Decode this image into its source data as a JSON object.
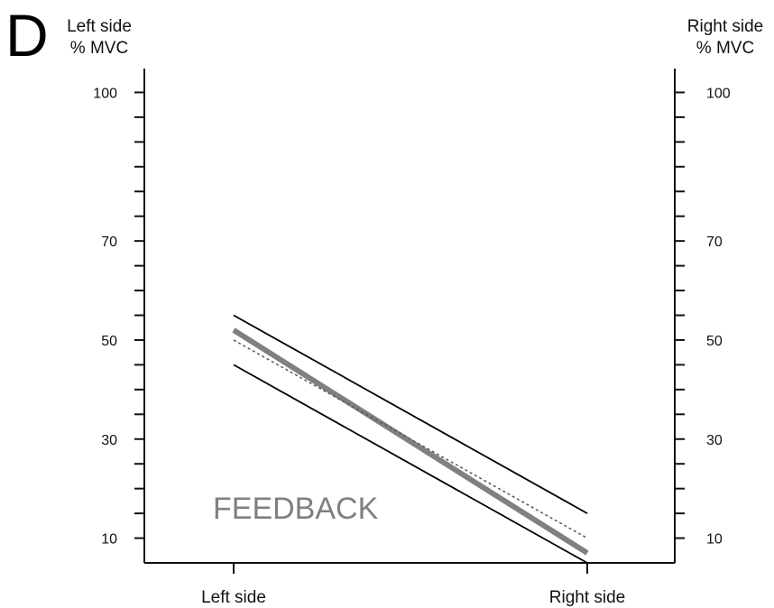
{
  "panel_label": "D",
  "chart_data": {
    "type": "line",
    "categories": [
      "Left side",
      "Right side"
    ],
    "left_axis": {
      "title_line1": "Left side",
      "title_line2": "% MVC",
      "ticks": [
        10,
        30,
        50,
        70,
        100
      ],
      "minor_step": 5,
      "range": [
        5,
        105
      ]
    },
    "right_axis": {
      "title_line1": "Right side",
      "title_line2": "% MVC",
      "ticks": [
        10,
        30,
        50,
        70,
        100
      ],
      "minor_step": 5,
      "range": [
        5,
        105
      ]
    },
    "series": [
      {
        "values": [
          55,
          15
        ],
        "style": "thin-solid",
        "color": "#000000"
      },
      {
        "values": [
          45,
          5
        ],
        "style": "thin-solid",
        "color": "#000000"
      },
      {
        "values": [
          52,
          7
        ],
        "style": "thick-solid",
        "color": "#808080"
      },
      {
        "values": [
          50,
          10
        ],
        "style": "dotted",
        "color": "#555555"
      }
    ],
    "annotation": "FEEDBACK"
  }
}
